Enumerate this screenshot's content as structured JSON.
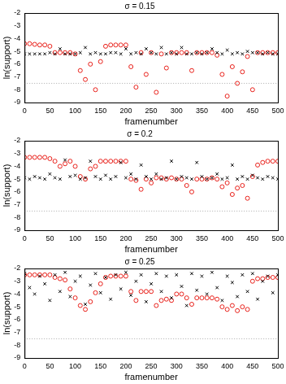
{
  "chart_data": [
    {
      "type": "scatter",
      "title": "σ = 0.15",
      "x_label": "framenumber",
      "y_label": "ln(support)",
      "x": [
        0,
        10,
        20,
        30,
        40,
        50,
        60,
        70,
        80,
        90,
        100,
        110,
        120,
        130,
        140,
        150,
        160,
        170,
        180,
        190,
        200,
        210,
        220,
        230,
        240,
        250,
        260,
        270,
        280,
        290,
        300,
        310,
        320,
        330,
        340,
        350,
        360,
        370,
        380,
        390,
        400,
        410,
        420,
        430,
        440,
        450,
        460,
        470,
        480,
        490,
        500
      ],
      "series": [
        {
          "color": "#000000",
          "marker": "x",
          "values": [
            -5.2,
            -5.2,
            -5.2,
            -5.2,
            -5.2,
            -5.1,
            -5.2,
            -4.8,
            -5.2,
            -5.2,
            -5.2,
            -5.1,
            -4.7,
            -5.2,
            -5.1,
            -5.2,
            -5.2,
            -5.1,
            -5.1,
            -5.2,
            -4.8,
            -5.2,
            -5.1,
            -5.2,
            -4.8,
            -5.1,
            -5.2,
            -4.7,
            -5.2,
            -5.1,
            -5.2,
            -4.7,
            -5.2,
            -5.2,
            -5.1,
            -5.2,
            -5.1,
            -4.8,
            -5.1,
            -5.2,
            -4.9,
            -5.2,
            -5.1,
            -5.2,
            -5.0,
            -5.1,
            -5.1,
            -5.2,
            -5.1,
            -5.2,
            -5.2
          ]
        },
        {
          "color": "#e8201a",
          "marker": "open_circle",
          "values": [
            -4.4,
            -4.4,
            -4.45,
            -4.5,
            -4.5,
            -4.6,
            -5.1,
            -5.1,
            -5.1,
            -5.1,
            -5.2,
            -6.5,
            -7.2,
            -6.0,
            -8.0,
            -5.8,
            -4.6,
            -4.5,
            -4.5,
            -4.5,
            -4.5,
            -6.2,
            -7.8,
            -5.1,
            -6.8,
            -5.1,
            -8.2,
            -5.2,
            -6.3,
            -5.1,
            -5.1,
            -5.1,
            -5.1,
            -6.5,
            -5.1,
            -5.1,
            -5.1,
            -5.1,
            -5.3,
            -6.8,
            -8.5,
            -6.2,
            -7.5,
            -6.6,
            -5.4,
            -8.0,
            -5.1,
            -5.1,
            -5.1,
            -5.1,
            -5.1
          ]
        }
      ],
      "reference_line": -7.5,
      "xlim": [
        0,
        500
      ],
      "xticks": [
        0,
        50,
        100,
        150,
        200,
        250,
        300,
        350,
        400,
        450,
        500
      ],
      "ylim": [
        -9,
        -2
      ],
      "yticks": [
        -9,
        -8,
        -7,
        -6,
        -5,
        -4,
        -3,
        -2
      ],
      "grid": false
    },
    {
      "type": "scatter",
      "title": "σ = 0.2",
      "x_label": "framenumber",
      "y_label": "ln(support)",
      "x": [
        0,
        10,
        20,
        30,
        40,
        50,
        60,
        70,
        80,
        90,
        100,
        110,
        120,
        130,
        140,
        150,
        160,
        170,
        180,
        190,
        200,
        210,
        220,
        230,
        240,
        250,
        260,
        270,
        280,
        290,
        300,
        310,
        320,
        330,
        340,
        350,
        360,
        370,
        380,
        390,
        400,
        410,
        420,
        430,
        440,
        450,
        460,
        470,
        480,
        490,
        500
      ],
      "series": [
        {
          "color": "#000000",
          "marker": "x",
          "values": [
            -4.9,
            -5.0,
            -4.8,
            -4.9,
            -5.0,
            -4.6,
            -4.9,
            -5.0,
            -3.5,
            -4.8,
            -4.7,
            -5.0,
            -4.9,
            -3.6,
            -4.8,
            -5.0,
            -4.7,
            -5.0,
            -4.8,
            -3.7,
            -4.9,
            -4.6,
            -5.0,
            -3.9,
            -4.8,
            -5.0,
            -4.6,
            -5.0,
            -4.9,
            -3.6,
            -5.0,
            -4.8,
            -4.9,
            -5.0,
            -3.7,
            -4.8,
            -5.0,
            -4.9,
            -4.6,
            -5.0,
            -4.9,
            -3.9,
            -5.0,
            -4.8,
            -5.0,
            -4.7,
            -4.9,
            -5.0,
            -4.8,
            -4.9,
            -5.0
          ]
        },
        {
          "color": "#e8201a",
          "marker": "open_circle",
          "values": [
            -3.3,
            -3.3,
            -3.3,
            -3.3,
            -3.3,
            -3.4,
            -3.6,
            -4.0,
            -3.8,
            -3.6,
            -4.0,
            -4.8,
            -5.0,
            -4.2,
            -4.0,
            -3.6,
            -3.6,
            -3.6,
            -3.6,
            -3.6,
            -3.6,
            -5.0,
            -5.1,
            -5.8,
            -5.0,
            -5.3,
            -4.9,
            -4.9,
            -5.0,
            -4.9,
            -5.0,
            -5.0,
            -5.5,
            -6.0,
            -5.0,
            -5.0,
            -5.0,
            -4.9,
            -5.0,
            -5.6,
            -5.3,
            -6.2,
            -5.7,
            -5.5,
            -6.5,
            -4.8,
            -3.9,
            -3.7,
            -3.6,
            -3.6,
            -3.6
          ]
        }
      ],
      "reference_line": -7.5,
      "xlim": [
        0,
        500
      ],
      "xticks": [
        0,
        50,
        100,
        150,
        200,
        250,
        300,
        350,
        400,
        450,
        500
      ],
      "ylim": [
        -9,
        -2
      ],
      "yticks": [
        -9,
        -8,
        -7,
        -6,
        -5,
        -4,
        -3,
        -2
      ],
      "grid": false
    },
    {
      "type": "scatter",
      "title": "σ = 0.25",
      "x_label": "framenumber",
      "y_label": "ln(support)",
      "x": [
        0,
        10,
        20,
        30,
        40,
        50,
        60,
        70,
        80,
        90,
        100,
        110,
        120,
        130,
        140,
        150,
        160,
        170,
        180,
        190,
        200,
        210,
        220,
        230,
        240,
        250,
        260,
        270,
        280,
        290,
        300,
        310,
        320,
        330,
        340,
        350,
        360,
        370,
        380,
        390,
        400,
        410,
        420,
        430,
        440,
        450,
        460,
        470,
        480,
        490,
        500
      ],
      "series": [
        {
          "color": "#000000",
          "marker": "x",
          "values": [
            -2.4,
            -3.5,
            -4.0,
            -2.6,
            -3.2,
            -4.5,
            -2.5,
            -3.8,
            -2.3,
            -4.2,
            -3.0,
            -2.6,
            -4.8,
            -3.3,
            -2.4,
            -3.9,
            -2.7,
            -4.4,
            -2.5,
            -3.6,
            -2.3,
            -4.1,
            -3.0,
            -2.5,
            -4.6,
            -3.2,
            -2.4,
            -3.8,
            -2.6,
            -4.3,
            -2.5,
            -3.4,
            -4.9,
            -2.4,
            -3.7,
            -2.6,
            -4.0,
            -2.3,
            -3.5,
            -4.5,
            -2.6,
            -3.1,
            -4.2,
            -2.5,
            -3.8,
            -2.4,
            -4.4,
            -3.0,
            -2.6,
            -3.9,
            -2.5
          ]
        },
        {
          "color": "#e8201a",
          "marker": "open_circle",
          "values": [
            -2.5,
            -2.5,
            -2.5,
            -2.5,
            -2.5,
            -2.5,
            -2.7,
            -2.8,
            -2.9,
            -3.6,
            -4.3,
            -4.9,
            -5.2,
            -4.6,
            -3.9,
            -3.2,
            -2.7,
            -2.6,
            -2.6,
            -2.6,
            -2.6,
            -3.8,
            -4.5,
            -3.8,
            -3.8,
            -3.8,
            -4.9,
            -4.5,
            -4.4,
            -4.5,
            -4.0,
            -4.0,
            -4.3,
            -4.8,
            -4.3,
            -4.3,
            -4.3,
            -4.3,
            -4.4,
            -5.0,
            -5.2,
            -4.9,
            -5.3,
            -5.0,
            -5.2,
            -3.0,
            -2.8,
            -2.8,
            -2.7,
            -2.7,
            -2.7
          ]
        }
      ],
      "reference_line": -7.5,
      "xlim": [
        0,
        500
      ],
      "xticks": [
        0,
        50,
        100,
        150,
        200,
        250,
        300,
        350,
        400,
        450,
        500
      ],
      "ylim": [
        -9,
        -2
      ],
      "yticks": [
        -9,
        -8,
        -7,
        -6,
        -5,
        -4,
        -3,
        -2
      ],
      "grid": false
    }
  ]
}
